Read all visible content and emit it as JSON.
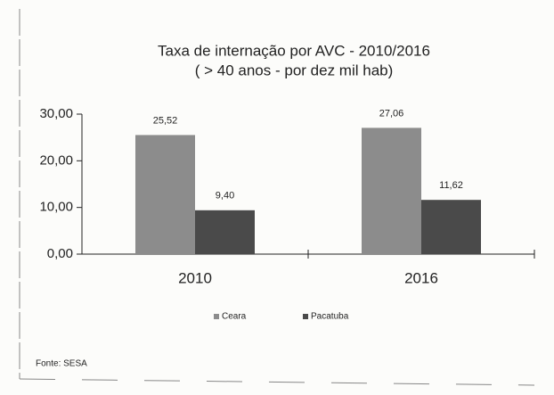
{
  "chart_data": {
    "type": "bar",
    "title": "Taxa de internação por AVC - 2010/2016",
    "subtitle": "( > 40 anos - por dez mil hab)",
    "categories": [
      "2010",
      "2016"
    ],
    "series": [
      {
        "name": "Ceara",
        "color": "#8c8c8c",
        "values": [
          25.52,
          27.06
        ],
        "value_labels": [
          "25,52",
          "27,06"
        ]
      },
      {
        "name": "Pacatuba",
        "color": "#4a4a4a",
        "values": [
          9.4,
          11.62
        ],
        "value_labels": [
          "9,40",
          "11,62"
        ]
      }
    ],
    "ylim": [
      0,
      30
    ],
    "yticks": [
      {
        "value": 0,
        "label": "0,00"
      },
      {
        "value": 10,
        "label": "10,00"
      },
      {
        "value": 20,
        "label": "20,00"
      },
      {
        "value": 30,
        "label": "30,00"
      }
    ],
    "grid": false,
    "legend": "bottom",
    "source": "Fonte: SESA"
  }
}
